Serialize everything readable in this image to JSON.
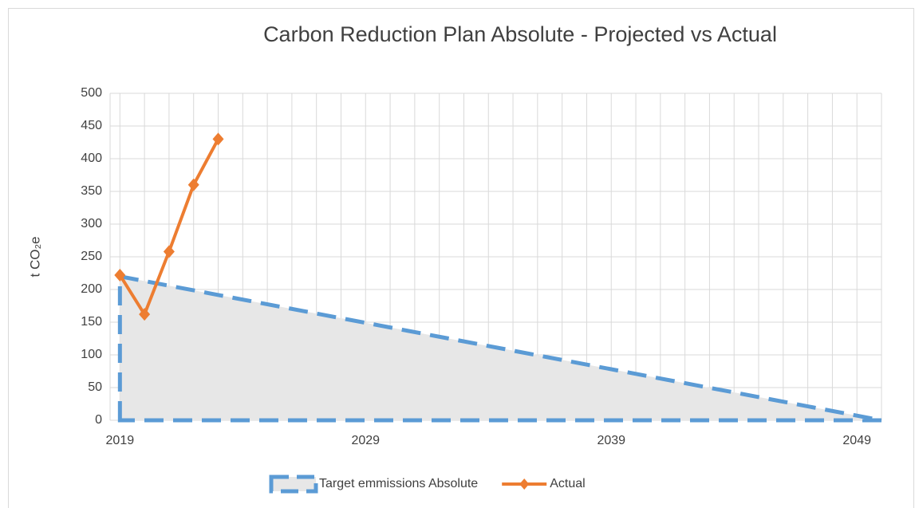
{
  "chart_data": {
    "type": "line",
    "title": "Carbon Reduction Plan Absolute - Projected vs Actual",
    "ylabel": "t CO₂e",
    "xlim": [
      2018.6,
      2050
    ],
    "ylim": [
      0,
      500
    ],
    "xticks": [
      2019,
      2029,
      2039,
      2049
    ],
    "xgrid": [
      2019,
      2020,
      2021,
      2022,
      2023,
      2024,
      2025,
      2026,
      2027,
      2028,
      2029,
      2030,
      2031,
      2032,
      2033,
      2034,
      2035,
      2036,
      2037,
      2038,
      2039,
      2040,
      2041,
      2042,
      2043,
      2044,
      2045,
      2046,
      2047,
      2048,
      2049,
      2050
    ],
    "yticks": [
      0,
      50,
      100,
      150,
      200,
      250,
      300,
      350,
      400,
      450,
      500
    ],
    "grid": true,
    "legend": "bottom",
    "series": [
      {
        "name": "Target emmissions Absolute",
        "color": "#5b9bd5",
        "fill": "#e7e7e7",
        "dashed": true,
        "area": true,
        "x": [
          2019,
          2050
        ],
        "values": [
          220,
          0
        ]
      },
      {
        "name": "Actual",
        "color": "#ed7d31",
        "marker": "diamond",
        "x": [
          2019,
          2020,
          2021,
          2022,
          2023
        ],
        "values": [
          222,
          162,
          258,
          360,
          430
        ]
      }
    ]
  }
}
